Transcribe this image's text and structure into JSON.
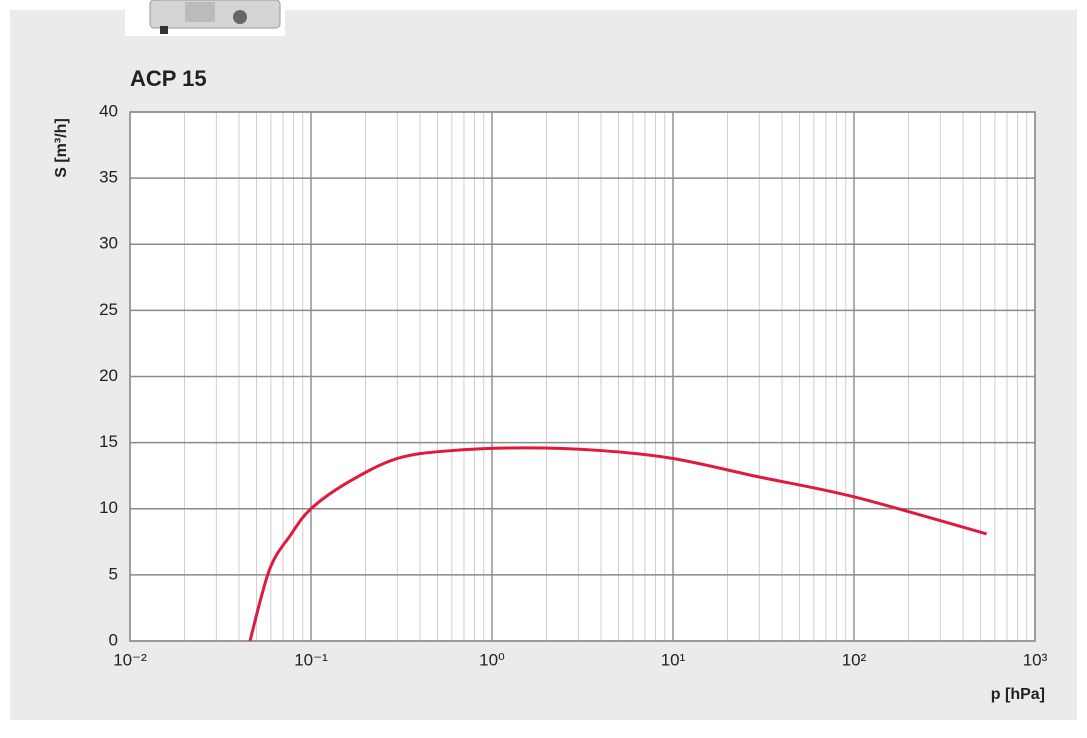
{
  "chart_data": {
    "type": "line",
    "title": "ACP 15",
    "x_label": "p [hPa]",
    "y_label": "S [m³/h]",
    "x_scale": "log",
    "grid": true,
    "color": "#e0193f",
    "x": [
      0.046,
      0.059,
      0.077,
      0.1,
      0.16,
      0.3,
      0.6,
      1.5,
      4,
      10,
      30,
      100,
      540
    ],
    "series": [
      {
        "color": "#e0193f",
        "values": [
          0,
          5.4,
          8,
          10,
          12,
          13.8,
          14.4,
          14.6,
          14.4,
          13.8,
          12.4,
          10.9,
          8.1
        ]
      }
    ],
    "xlim": [
      0.01,
      1000
    ],
    "ylim": [
      0,
      40
    ],
    "xticks": [
      {
        "value": 0.01,
        "label": "10⁻²"
      },
      {
        "value": 0.1,
        "label": "10⁻¹"
      },
      {
        "value": 1,
        "label": "10⁰"
      },
      {
        "value": 10,
        "label": "10¹"
      },
      {
        "value": 100,
        "label": "10²"
      },
      {
        "value": 1000,
        "label": "10³"
      }
    ],
    "yticks": [
      0,
      5,
      10,
      15,
      20,
      25,
      30,
      35,
      40
    ]
  }
}
